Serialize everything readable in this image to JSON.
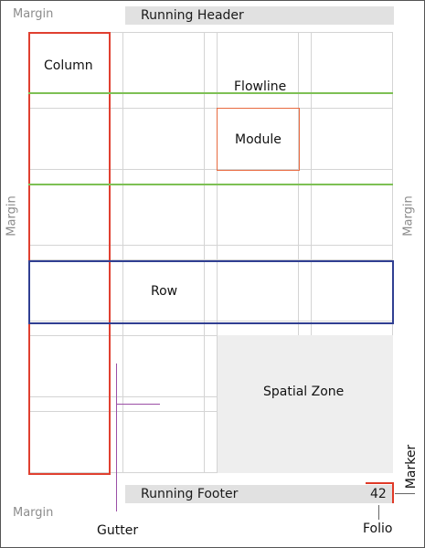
{
  "running_header": "Running Header",
  "running_footer": "Running Footer",
  "folio_number": "42",
  "labels": {
    "margin_top_left": "Margin",
    "margin_left": "Margin",
    "margin_right": "Margin",
    "margin_bottom_left": "Margin",
    "column": "Column",
    "flowline": "Flowline",
    "module": "Module",
    "row": "Row",
    "spatial_zone": "Spatial Zone",
    "gutter": "Gutter",
    "folio": "Folio",
    "marker": "Marker"
  },
  "colors": {
    "column": "#e04030",
    "flowline": "#7dc054",
    "module": "#e86a40",
    "row": "#303f92",
    "gutter_callout": "#9b4fa6",
    "marker": "#e03a28",
    "spatial_zone": "#eeeeee",
    "grid": "#d4d4d4",
    "header_footer": "#e1e1e1"
  }
}
